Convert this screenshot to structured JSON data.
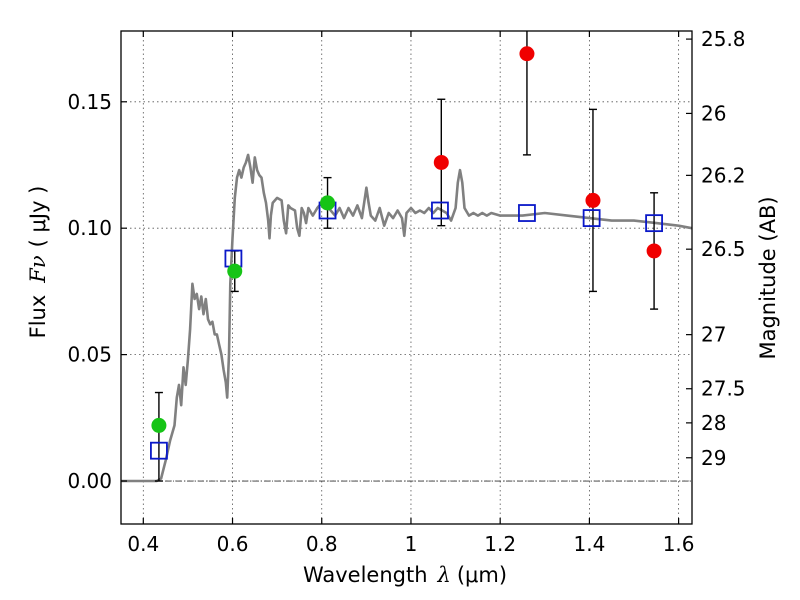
{
  "chart_data": {
    "type": "scatter",
    "xlabel_word": "Wavelength",
    "xlabel_symbol": "λ",
    "xlabel_unit": "(μm)",
    "ylabel_word": "Flux",
    "ylabel_symbol": "Fν",
    "ylabel_unit": "( μJy )",
    "ylabel_right": "Magnitude (AB)",
    "xlim": [
      0.35,
      1.63
    ],
    "ylim": [
      -0.017,
      0.178
    ],
    "x_ticks": [
      0.4,
      0.6,
      0.8,
      1.0,
      1.2,
      1.4,
      1.6
    ],
    "x_tick_labels": [
      "0.4",
      "0.6",
      "0.8",
      "1",
      "1.2",
      "1.4",
      "1.6"
    ],
    "y_ticks": [
      0.0,
      0.05,
      0.1,
      0.15
    ],
    "y_tick_labels": [
      "0.00",
      "0.05",
      "0.10",
      "0.15"
    ],
    "right_ticks": [
      {
        "label": "25.8",
        "flux": 0.1748
      },
      {
        "label": "26",
        "flux": 0.1454
      },
      {
        "label": "26.2",
        "flux": 0.1209
      },
      {
        "label": "26.5",
        "flux": 0.0917
      },
      {
        "label": "27",
        "flux": 0.0579
      },
      {
        "label": "27.5",
        "flux": 0.0365
      },
      {
        "label": "28",
        "flux": 0.023
      },
      {
        "label": "29",
        "flux": 0.0092
      }
    ],
    "grid": true,
    "zero_line": true,
    "colors": {
      "model": "#808080",
      "model_points": "#0a18c8",
      "optical_obs": "#16c416",
      "nir_obs": "#f00000",
      "errorbar": "#000000",
      "grid": "#555555"
    },
    "model_spectrum": [
      [
        0.35,
        0.0
      ],
      [
        0.43,
        0.0
      ],
      [
        0.44,
        0.001
      ],
      [
        0.45,
        0.008
      ],
      [
        0.46,
        0.016
      ],
      [
        0.47,
        0.022
      ],
      [
        0.475,
        0.033
      ],
      [
        0.48,
        0.038
      ],
      [
        0.485,
        0.03
      ],
      [
        0.49,
        0.045
      ],
      [
        0.495,
        0.038
      ],
      [
        0.5,
        0.048
      ],
      [
        0.505,
        0.06
      ],
      [
        0.51,
        0.078
      ],
      [
        0.515,
        0.072
      ],
      [
        0.52,
        0.074
      ],
      [
        0.525,
        0.068
      ],
      [
        0.53,
        0.073
      ],
      [
        0.535,
        0.066
      ],
      [
        0.54,
        0.072
      ],
      [
        0.545,
        0.064
      ],
      [
        0.55,
        0.062
      ],
      [
        0.555,
        0.063
      ],
      [
        0.56,
        0.058
      ],
      [
        0.565,
        0.058
      ],
      [
        0.57,
        0.054
      ],
      [
        0.575,
        0.05
      ],
      [
        0.58,
        0.044
      ],
      [
        0.585,
        0.039
      ],
      [
        0.588,
        0.033
      ],
      [
        0.592,
        0.05
      ],
      [
        0.595,
        0.078
      ],
      [
        0.6,
        0.096
      ],
      [
        0.605,
        0.112
      ],
      [
        0.61,
        0.12
      ],
      [
        0.615,
        0.123
      ],
      [
        0.62,
        0.12
      ],
      [
        0.625,
        0.124
      ],
      [
        0.63,
        0.126
      ],
      [
        0.635,
        0.129
      ],
      [
        0.64,
        0.124
      ],
      [
        0.645,
        0.118
      ],
      [
        0.65,
        0.128
      ],
      [
        0.655,
        0.123
      ],
      [
        0.66,
        0.121
      ],
      [
        0.665,
        0.12
      ],
      [
        0.67,
        0.114
      ],
      [
        0.675,
        0.11
      ],
      [
        0.68,
        0.103
      ],
      [
        0.683,
        0.096
      ],
      [
        0.686,
        0.105
      ],
      [
        0.69,
        0.11
      ],
      [
        0.695,
        0.111
      ],
      [
        0.7,
        0.112
      ],
      [
        0.71,
        0.111
      ],
      [
        0.715,
        0.103
      ],
      [
        0.72,
        0.098
      ],
      [
        0.725,
        0.109
      ],
      [
        0.73,
        0.108
      ],
      [
        0.74,
        0.107
      ],
      [
        0.745,
        0.1
      ],
      [
        0.75,
        0.097
      ],
      [
        0.755,
        0.108
      ],
      [
        0.76,
        0.106
      ],
      [
        0.765,
        0.102
      ],
      [
        0.77,
        0.108
      ],
      [
        0.78,
        0.105
      ],
      [
        0.79,
        0.108
      ],
      [
        0.8,
        0.11
      ],
      [
        0.81,
        0.109
      ],
      [
        0.82,
        0.107
      ],
      [
        0.83,
        0.105
      ],
      [
        0.84,
        0.108
      ],
      [
        0.85,
        0.104
      ],
      [
        0.86,
        0.108
      ],
      [
        0.87,
        0.105
      ],
      [
        0.88,
        0.109
      ],
      [
        0.89,
        0.104
      ],
      [
        0.9,
        0.116
      ],
      [
        0.905,
        0.11
      ],
      [
        0.91,
        0.105
      ],
      [
        0.92,
        0.103
      ],
      [
        0.93,
        0.108
      ],
      [
        0.94,
        0.101
      ],
      [
        0.95,
        0.106
      ],
      [
        0.96,
        0.104
      ],
      [
        0.97,
        0.107
      ],
      [
        0.98,
        0.104
      ],
      [
        0.985,
        0.097
      ],
      [
        0.99,
        0.106
      ],
      [
        1.0,
        0.108
      ],
      [
        1.01,
        0.106
      ],
      [
        1.02,
        0.107
      ],
      [
        1.03,
        0.106
      ],
      [
        1.04,
        0.108
      ],
      [
        1.05,
        0.106
      ],
      [
        1.06,
        0.108
      ],
      [
        1.07,
        0.107
      ],
      [
        1.08,
        0.106
      ],
      [
        1.09,
        0.103
      ],
      [
        1.1,
        0.108
      ],
      [
        1.105,
        0.118
      ],
      [
        1.11,
        0.123
      ],
      [
        1.115,
        0.118
      ],
      [
        1.12,
        0.108
      ],
      [
        1.13,
        0.105
      ],
      [
        1.14,
        0.106
      ],
      [
        1.15,
        0.105
      ],
      [
        1.16,
        0.106
      ],
      [
        1.17,
        0.105
      ],
      [
        1.18,
        0.106
      ],
      [
        1.2,
        0.105
      ],
      [
        1.25,
        0.105
      ],
      [
        1.3,
        0.106
      ],
      [
        1.35,
        0.105
      ],
      [
        1.4,
        0.104
      ],
      [
        1.45,
        0.103
      ],
      [
        1.5,
        0.103
      ],
      [
        1.55,
        0.102
      ],
      [
        1.6,
        0.101
      ],
      [
        1.63,
        0.1
      ]
    ],
    "model_points": [
      {
        "x": 0.435,
        "y": 0.012
      },
      {
        "x": 0.602,
        "y": 0.088
      },
      {
        "x": 0.813,
        "y": 0.107
      },
      {
        "x": 1.065,
        "y": 0.107
      },
      {
        "x": 1.26,
        "y": 0.106
      },
      {
        "x": 1.405,
        "y": 0.104
      },
      {
        "x": 1.545,
        "y": 0.102
      }
    ],
    "optical_obs": [
      {
        "x": 0.435,
        "y": 0.022,
        "err_lo": 0.022,
        "err_hi": 0.013
      },
      {
        "x": 0.605,
        "y": 0.083,
        "err_lo": 0.008,
        "err_hi": 0.008
      },
      {
        "x": 0.813,
        "y": 0.11,
        "err_lo": 0.01,
        "err_hi": 0.01
      }
    ],
    "nir_obs": [
      {
        "x": 1.068,
        "y": 0.126,
        "err_lo": 0.025,
        "err_hi": 0.025
      },
      {
        "x": 1.26,
        "y": 0.169,
        "err_lo": 0.04,
        "err_hi": 0.04
      },
      {
        "x": 1.408,
        "y": 0.111,
        "err_lo": 0.036,
        "err_hi": 0.036
      },
      {
        "x": 1.545,
        "y": 0.091,
        "err_lo": 0.023,
        "err_hi": 0.023
      }
    ]
  }
}
